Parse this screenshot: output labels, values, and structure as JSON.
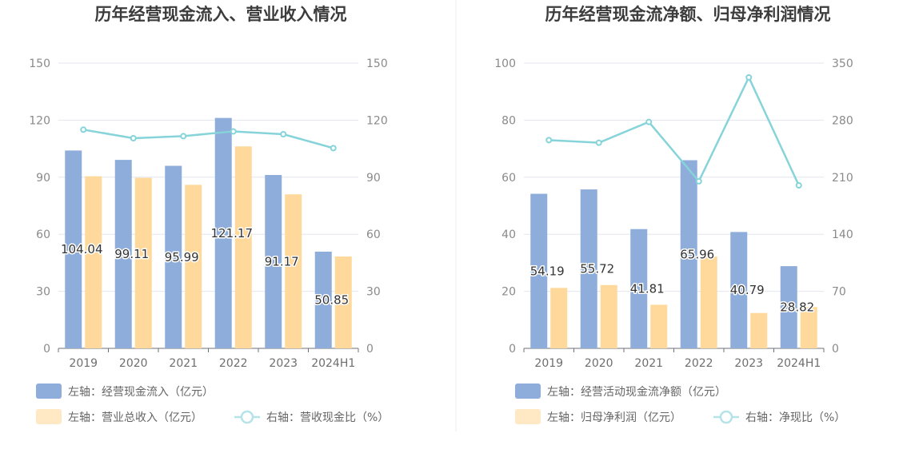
{
  "chart_data": [
    {
      "type": "bar",
      "title": "历年经营现金流入、营业收入情况",
      "categories": [
        "2019",
        "2020",
        "2021",
        "2022",
        "2023",
        "2024H1"
      ],
      "left_axis": {
        "ylim": [
          0,
          150
        ],
        "ticks": [
          "0",
          "30",
          "60",
          "90",
          "120",
          "150"
        ]
      },
      "right_axis": {
        "ylim": [
          0,
          150
        ],
        "ticks": [
          "0",
          "30",
          "60",
          "90",
          "120",
          "150"
        ]
      },
      "grid": true,
      "legend_position": "bottom-left",
      "series": [
        {
          "name": "左轴：经营现金流入（亿元）",
          "kind": "bar",
          "axis": "left",
          "color": "#8eadda",
          "values": [
            104.04,
            99.11,
            95.99,
            121.17,
            91.17,
            50.85
          ],
          "labels": [
            "104.04",
            "99.11",
            "95.99",
            "121.17",
            "91.17",
            "50.85"
          ]
        },
        {
          "name": "左轴：营业总收入（亿元）",
          "kind": "bar",
          "axis": "left",
          "color": "#ffd99c",
          "values": [
            90.5,
            89.7,
            86.0,
            106.2,
            81.0,
            48.3
          ]
        },
        {
          "name": "右轴：营收现金比（%）",
          "kind": "line",
          "axis": "right",
          "color": "#86d4da",
          "values": [
            115.0,
            110.5,
            111.6,
            114.1,
            112.6,
            105.3
          ]
        }
      ]
    },
    {
      "type": "bar",
      "title": "历年经营现金流净额、归母净利润情况",
      "categories": [
        "2019",
        "2020",
        "2021",
        "2022",
        "2023",
        "2024H1"
      ],
      "left_axis": {
        "ylim": [
          0,
          100
        ],
        "ticks": [
          "0",
          "20",
          "40",
          "60",
          "80",
          "100"
        ]
      },
      "right_axis": {
        "ylim": [
          0,
          350
        ],
        "ticks": [
          "0",
          "70",
          "140",
          "210",
          "280",
          "350"
        ]
      },
      "grid": true,
      "legend_position": "bottom-left",
      "series": [
        {
          "name": "左轴：经营活动现金流净额（亿元）",
          "kind": "bar",
          "axis": "left",
          "color": "#8eadda",
          "values": [
            54.19,
            55.72,
            41.81,
            65.96,
            40.79,
            28.82
          ],
          "labels": [
            "54.19",
            "55.72",
            "41.81",
            "65.96",
            "40.79",
            "28.82"
          ]
        },
        {
          "name": "左轴：归母净利润（亿元）",
          "kind": "bar",
          "axis": "left",
          "color": "#ffd99c",
          "values": [
            21.2,
            22.2,
            15.3,
            32.2,
            12.4,
            14.5
          ]
        },
        {
          "name": "右轴：净现比（%）",
          "kind": "line",
          "axis": "right",
          "color": "#86d4da",
          "values": [
            255.5,
            252.3,
            277.8,
            205.0,
            332.5,
            200.0
          ]
        }
      ]
    }
  ]
}
